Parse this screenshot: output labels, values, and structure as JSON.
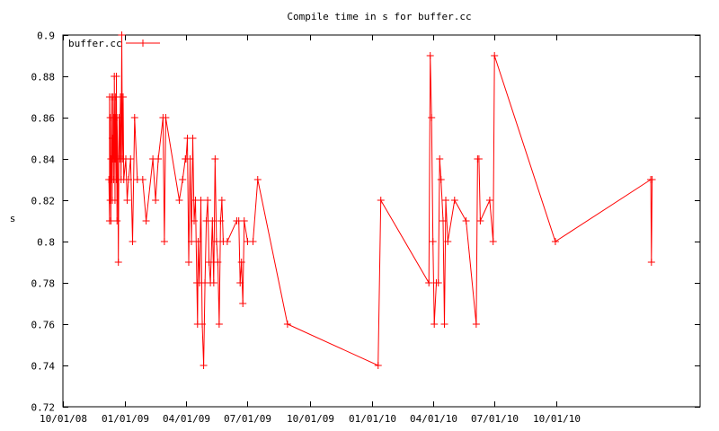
{
  "chart_data": {
    "type": "line",
    "title": "Compile time in s for buffer.cc",
    "xlabel": "",
    "ylabel": "s",
    "ylim": [
      0.72,
      0.9
    ],
    "xlim": [
      "2008-10-01",
      "2011-05-01"
    ],
    "x_ticks": [
      "2008-10-01",
      "2009-01-01",
      "2009-04-01",
      "2009-07-01",
      "2009-10-01",
      "2010-01-01",
      "2010-04-01",
      "2010-07-01",
      "2010-10-01"
    ],
    "x_tick_labels": [
      "10/01/08",
      "01/01/09",
      "04/01/09",
      "07/01/09",
      "10/01/09",
      "01/01/10",
      "04/01/10",
      "07/01/10",
      "10/01/10"
    ],
    "y_ticks": [
      0.72,
      0.74,
      0.76,
      0.78,
      0.8,
      0.82,
      0.84,
      0.86,
      0.88,
      0.9
    ],
    "y_tick_labels": [
      "0.72",
      "0.74",
      "0.76",
      "0.78",
      "0.8",
      "0.82",
      "0.84",
      "0.86",
      "0.88",
      "0.9"
    ],
    "grid": false,
    "legend_position": "top-left",
    "colors": {
      "series": "#ff0000",
      "axis": "#000000",
      "background": "#ffffff"
    },
    "series": [
      {
        "name": "buffer.cc",
        "points": [
          [
            "2008-12-08",
            0.83
          ],
          [
            "2008-12-09",
            0.81
          ],
          [
            "2008-12-09",
            0.87
          ],
          [
            "2008-12-10",
            0.82
          ],
          [
            "2008-12-10",
            0.86
          ],
          [
            "2008-12-11",
            0.81
          ],
          [
            "2008-12-11",
            0.84
          ],
          [
            "2008-12-12",
            0.83
          ],
          [
            "2008-12-12",
            0.87
          ],
          [
            "2008-12-13",
            0.82
          ],
          [
            "2008-12-13",
            0.85
          ],
          [
            "2008-12-14",
            0.84
          ],
          [
            "2008-12-14",
            0.87
          ],
          [
            "2008-12-15",
            0.83
          ],
          [
            "2008-12-15",
            0.86
          ],
          [
            "2008-12-16",
            0.84
          ],
          [
            "2008-12-16",
            0.88
          ],
          [
            "2008-12-17",
            0.82
          ],
          [
            "2008-12-17",
            0.86
          ],
          [
            "2008-12-18",
            0.84
          ],
          [
            "2008-12-18",
            0.87
          ],
          [
            "2008-12-19",
            0.83
          ],
          [
            "2008-12-19",
            0.88
          ],
          [
            "2008-12-20",
            0.81
          ],
          [
            "2008-12-20",
            0.86
          ],
          [
            "2008-12-21",
            0.84
          ],
          [
            "2008-12-22",
            0.79
          ],
          [
            "2008-12-23",
            0.86
          ],
          [
            "2008-12-24",
            0.84
          ],
          [
            "2008-12-25",
            0.87
          ],
          [
            "2008-12-26",
            0.83
          ],
          [
            "2008-12-27",
            0.9
          ],
          [
            "2008-12-28",
            0.84
          ],
          [
            "2008-12-29",
            0.87
          ],
          [
            "2008-12-30",
            0.83
          ],
          [
            "2009-01-02",
            0.84
          ],
          [
            "2009-01-04",
            0.82
          ],
          [
            "2009-01-06",
            0.83
          ],
          [
            "2009-01-09",
            0.84
          ],
          [
            "2009-01-12",
            0.8
          ],
          [
            "2009-01-15",
            0.86
          ],
          [
            "2009-01-19",
            0.83
          ],
          [
            "2009-01-27",
            0.83
          ],
          [
            "2009-02-01",
            0.81
          ],
          [
            "2009-02-11",
            0.84
          ],
          [
            "2009-02-15",
            0.82
          ],
          [
            "2009-02-19",
            0.84
          ],
          [
            "2009-02-26",
            0.86
          ],
          [
            "2009-02-28",
            0.8
          ],
          [
            "2009-03-02",
            0.86
          ],
          [
            "2009-03-22",
            0.82
          ],
          [
            "2009-03-27",
            0.83
          ],
          [
            "2009-03-31",
            0.84
          ],
          [
            "2009-04-01",
            0.84
          ],
          [
            "2009-04-03",
            0.85
          ],
          [
            "2009-04-05",
            0.79
          ],
          [
            "2009-04-07",
            0.84
          ],
          [
            "2009-04-09",
            0.8
          ],
          [
            "2009-04-11",
            0.85
          ],
          [
            "2009-04-13",
            0.81
          ],
          [
            "2009-04-15",
            0.82
          ],
          [
            "2009-04-17",
            0.78
          ],
          [
            "2009-04-18",
            0.76
          ],
          [
            "2009-04-19",
            0.8
          ],
          [
            "2009-04-21",
            0.78
          ],
          [
            "2009-04-23",
            0.82
          ],
          [
            "2009-04-25",
            0.76
          ],
          [
            "2009-04-27",
            0.74
          ],
          [
            "2009-04-29",
            0.78
          ],
          [
            "2009-05-01",
            0.81
          ],
          [
            "2009-05-03",
            0.82
          ],
          [
            "2009-05-05",
            0.79
          ],
          [
            "2009-05-07",
            0.78
          ],
          [
            "2009-05-10",
            0.81
          ],
          [
            "2009-05-12",
            0.78
          ],
          [
            "2009-05-14",
            0.84
          ],
          [
            "2009-05-16",
            0.8
          ],
          [
            "2009-05-18",
            0.79
          ],
          [
            "2009-05-20",
            0.76
          ],
          [
            "2009-05-22",
            0.81
          ],
          [
            "2009-05-24",
            0.82
          ],
          [
            "2009-05-26",
            0.8
          ],
          [
            "2009-06-01",
            0.8
          ],
          [
            "2009-06-15",
            0.81
          ],
          [
            "2009-06-18",
            0.81
          ],
          [
            "2009-06-20",
            0.78
          ],
          [
            "2009-06-22",
            0.79
          ],
          [
            "2009-06-24",
            0.77
          ],
          [
            "2009-06-26",
            0.81
          ],
          [
            "2009-07-01",
            0.8
          ],
          [
            "2009-07-09",
            0.8
          ],
          [
            "2009-07-16",
            0.83
          ],
          [
            "2009-08-29",
            0.76
          ],
          [
            "2010-01-10",
            0.74
          ],
          [
            "2010-01-14",
            0.82
          ],
          [
            "2010-03-26",
            0.78
          ],
          [
            "2010-03-28",
            0.89
          ],
          [
            "2010-03-30",
            0.86
          ],
          [
            "2010-04-01",
            0.8
          ],
          [
            "2010-04-03",
            0.76
          ],
          [
            "2010-04-06",
            0.78
          ],
          [
            "2010-04-09",
            0.78
          ],
          [
            "2010-04-11",
            0.84
          ],
          [
            "2010-04-13",
            0.83
          ],
          [
            "2010-04-16",
            0.81
          ],
          [
            "2010-04-18",
            0.76
          ],
          [
            "2010-04-20",
            0.82
          ],
          [
            "2010-04-23",
            0.8
          ],
          [
            "2010-05-03",
            0.82
          ],
          [
            "2010-05-20",
            0.81
          ],
          [
            "2010-06-04",
            0.76
          ],
          [
            "2010-06-06",
            0.84
          ],
          [
            "2010-06-08",
            0.84
          ],
          [
            "2010-06-10",
            0.81
          ],
          [
            "2010-06-24",
            0.82
          ],
          [
            "2010-06-29",
            0.8
          ],
          [
            "2010-07-01",
            0.89
          ],
          [
            "2010-09-29",
            0.8
          ],
          [
            "2011-02-17",
            0.83
          ],
          [
            "2011-02-18",
            0.79
          ],
          [
            "2011-02-19",
            0.83
          ]
        ]
      }
    ]
  }
}
